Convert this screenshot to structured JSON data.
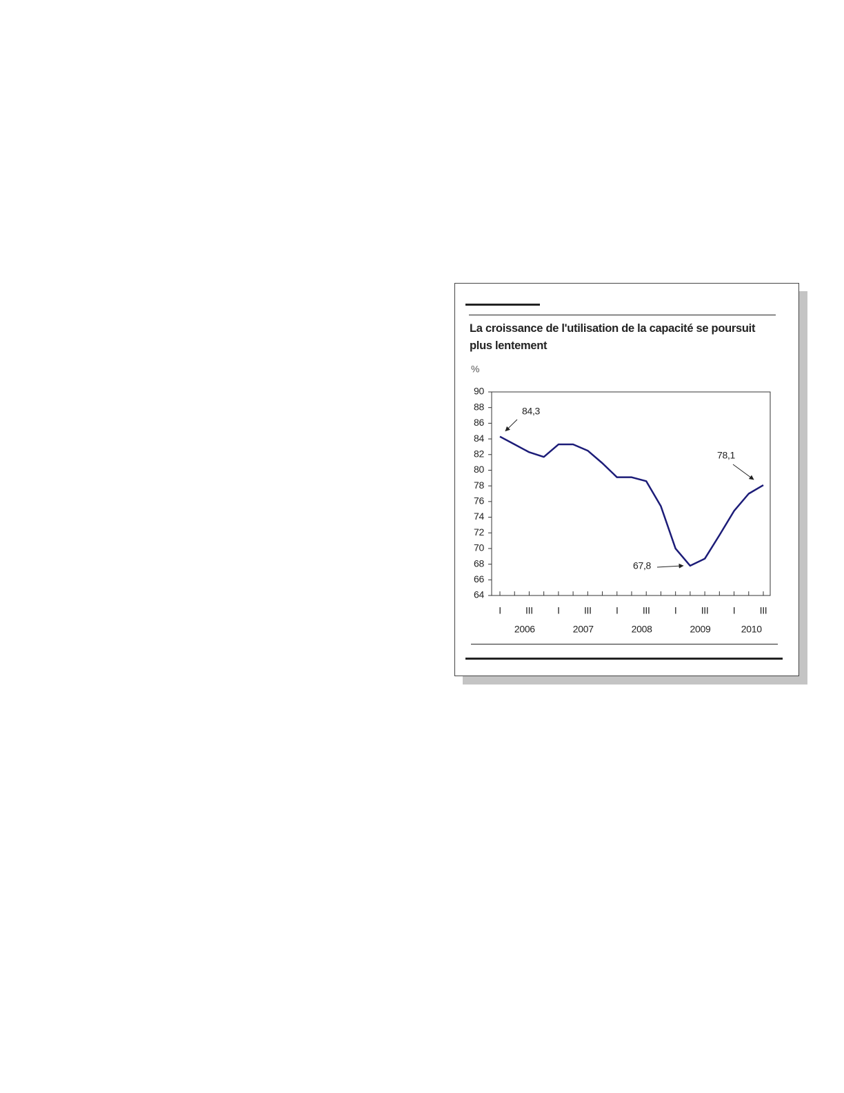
{
  "chart_data": {
    "type": "line",
    "title": "La croissance de l'utilisation de la capacité se poursuit plus lentement",
    "y_label": "%",
    "categories": [
      "I",
      null,
      "III",
      null,
      "I",
      null,
      "III",
      null,
      "I",
      null,
      "III",
      null,
      "I",
      null,
      "III",
      null,
      "I",
      null,
      "III"
    ],
    "years": [
      "2006",
      "2007",
      "2008",
      "2009",
      "2010"
    ],
    "series": [
      {
        "color": "#1c1c78",
        "values": [
          84.3,
          83.3,
          82.3,
          81.7,
          83.3,
          83.3,
          82.5,
          80.9,
          79.1,
          79.1,
          78.6,
          75.4,
          70.0,
          67.8,
          68.7,
          71.7,
          74.8,
          77.0,
          78.1
        ]
      }
    ],
    "ylim": [
      64,
      90
    ],
    "yticks": [
      64,
      66,
      68,
      70,
      72,
      74,
      76,
      78,
      80,
      82,
      84,
      86,
      88,
      90
    ],
    "grid": false,
    "annotations": [
      {
        "label": "84,3",
        "value": 84.3
      },
      {
        "label": "78,1",
        "value": 78.1
      },
      {
        "label": "67,8",
        "value": 67.8
      }
    ]
  }
}
